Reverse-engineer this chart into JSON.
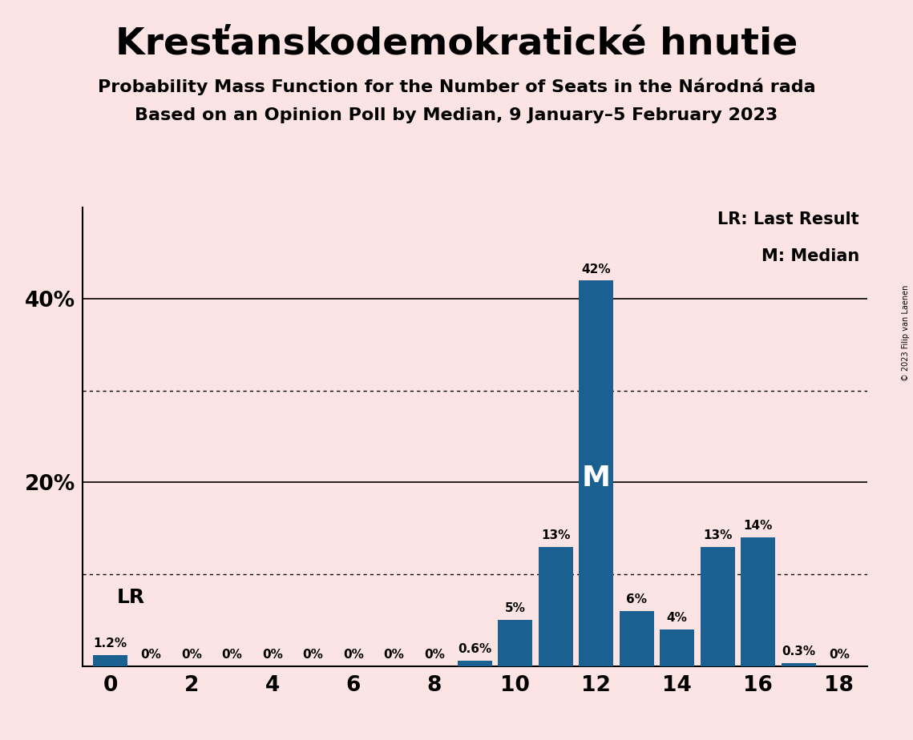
{
  "title": "Kresťanskodemokratické hnutie",
  "subtitle1": "Probability Mass Function for the Number of Seats in the Národná rada",
  "subtitle2": "Based on an Opinion Poll by Median, 9 January–5 February 2023",
  "copyright": "© 2023 Filip van Laenen",
  "seats": [
    0,
    1,
    2,
    3,
    4,
    5,
    6,
    7,
    8,
    9,
    10,
    11,
    12,
    13,
    14,
    15,
    16,
    17,
    18
  ],
  "probabilities": [
    1.2,
    0,
    0,
    0,
    0,
    0,
    0,
    0,
    0,
    0.6,
    5,
    13,
    42,
    6,
    4,
    13,
    14,
    0.3,
    0
  ],
  "bar_color": "#1a6090",
  "background_color": "#fce4e4",
  "median_seat": 12,
  "lr_seat": 0,
  "lr_label": "LR",
  "median_label": "M",
  "ylim": [
    0,
    50
  ],
  "xlim": [
    -0.7,
    18.7
  ],
  "dotted_lines": [
    10,
    30
  ],
  "solid_lines": [
    20,
    40
  ],
  "bar_label_fontsize": 11,
  "title_fontsize": 34,
  "subtitle_fontsize": 16,
  "ytick_fontsize": 19,
  "xtick_fontsize": 19,
  "legend_fontsize": 15,
  "lr_fontsize": 18,
  "m_fontsize": 26
}
